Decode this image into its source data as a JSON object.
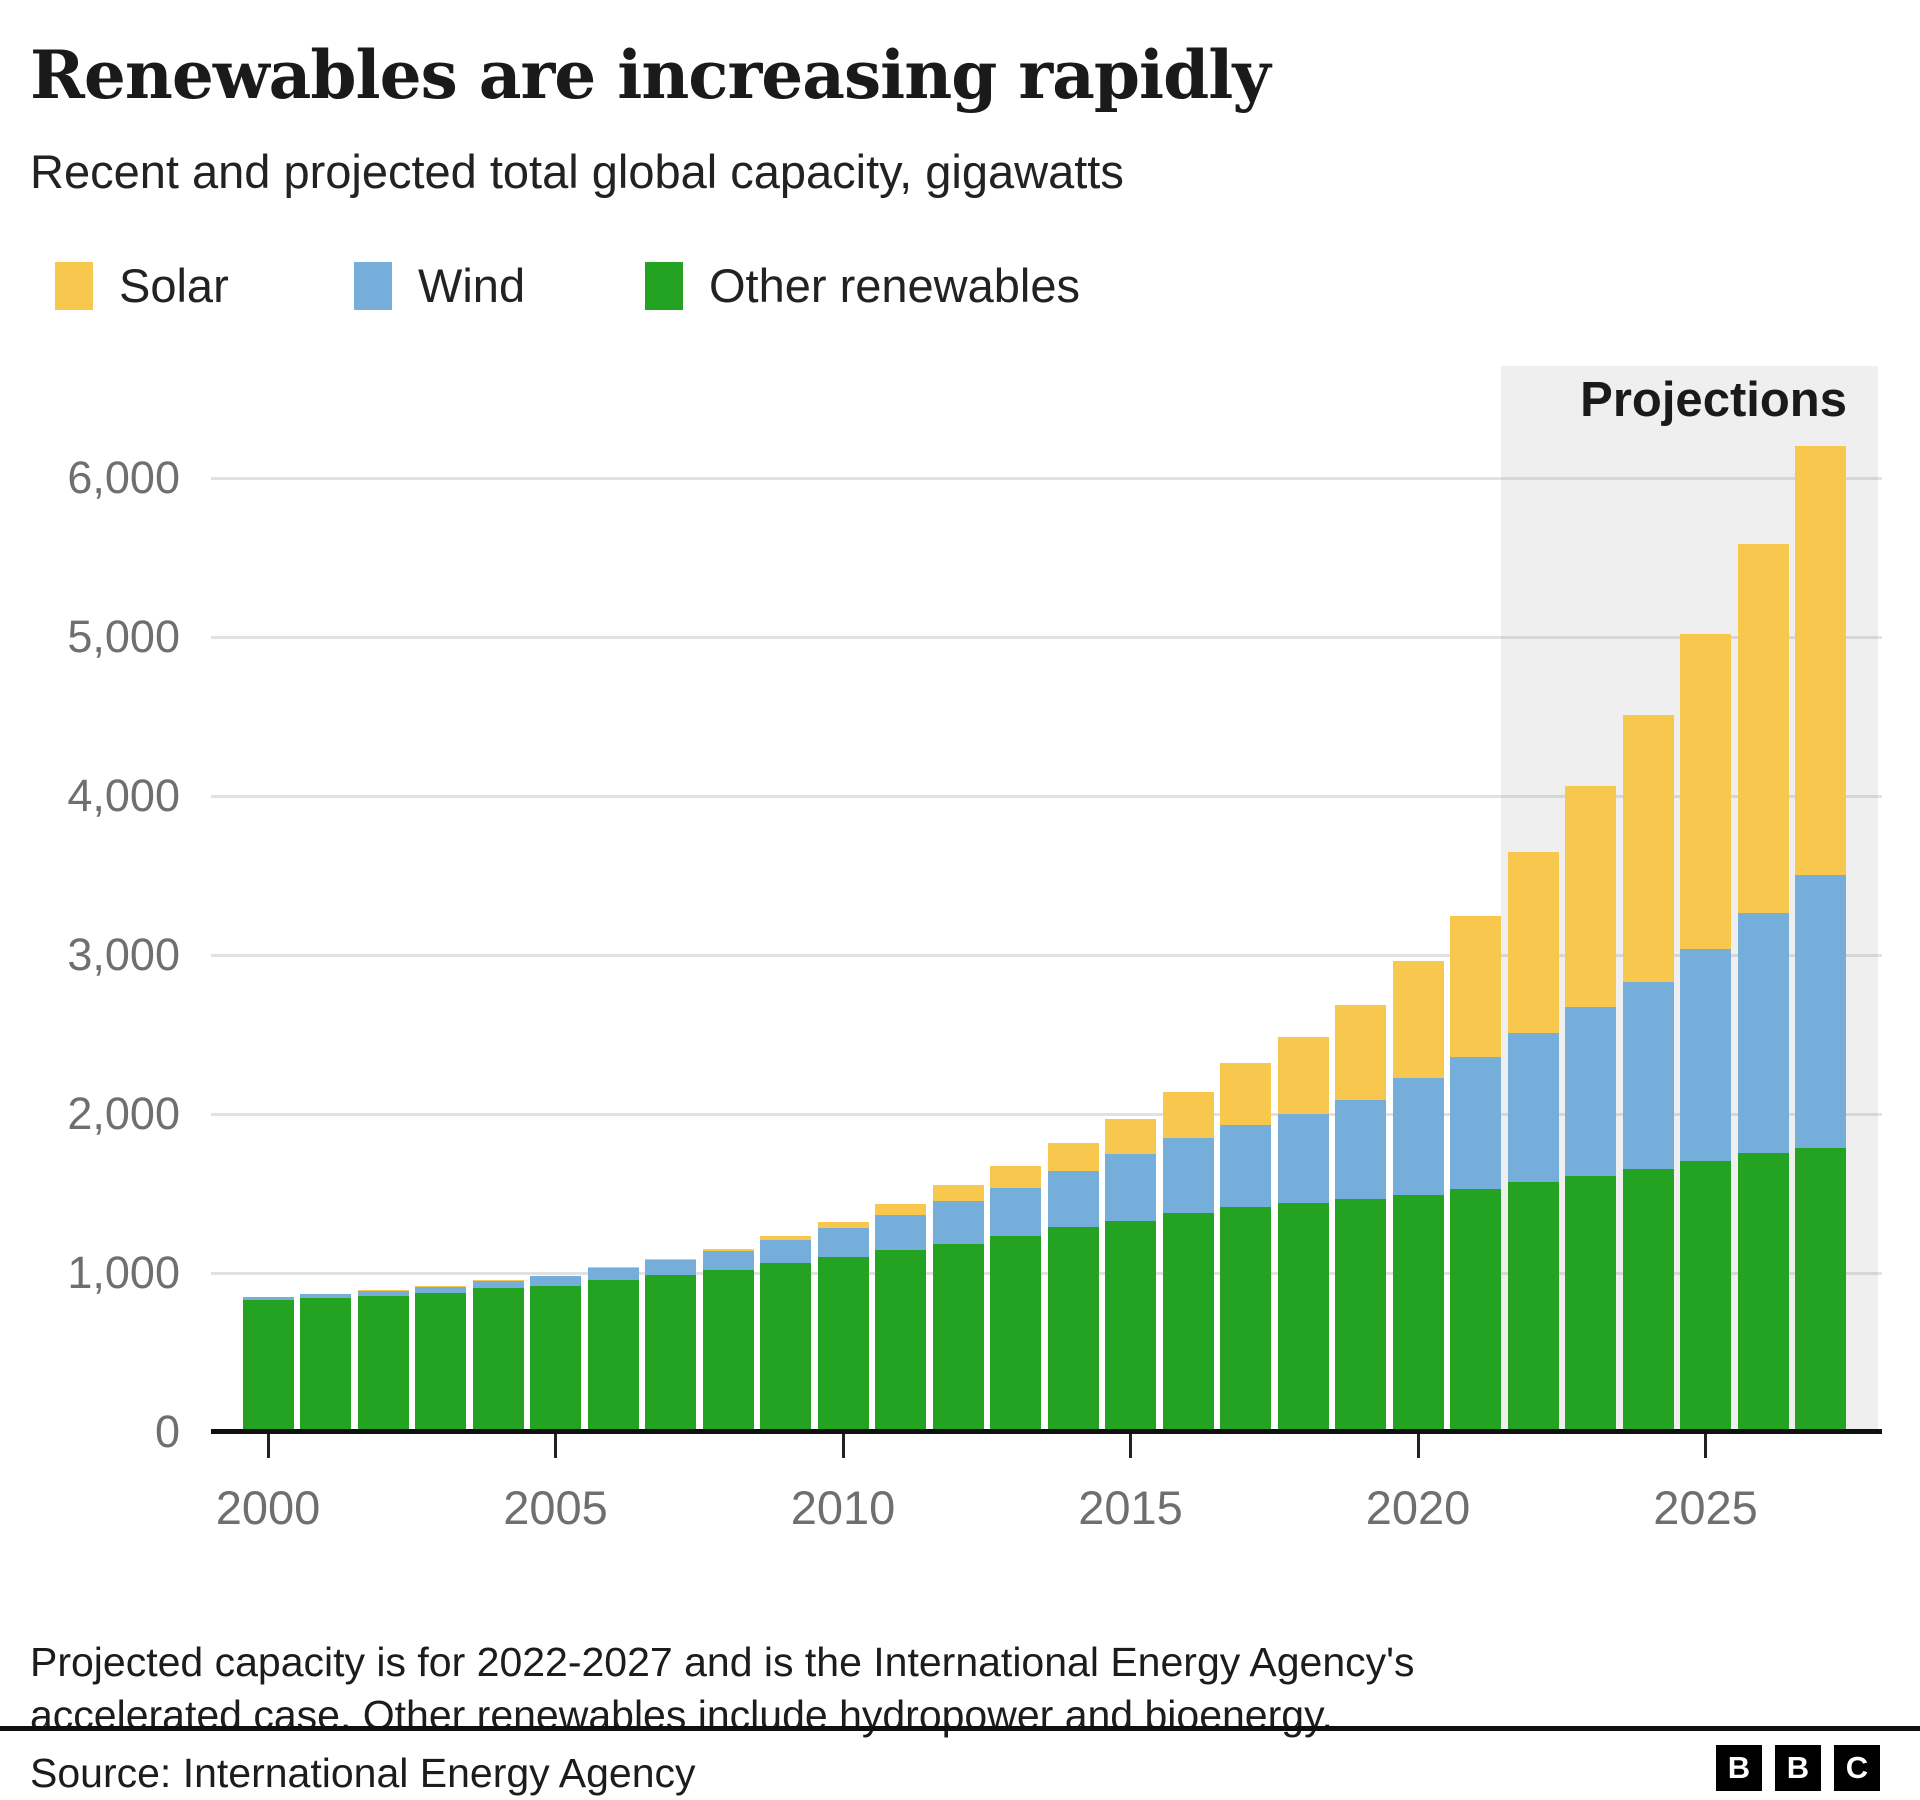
{
  "header": {
    "title": "Renewables are increasing rapidly",
    "subtitle": "Recent and projected total global capacity, gigawatts"
  },
  "legend": {
    "items": [
      {
        "label": "Solar",
        "color": "#F8C74D"
      },
      {
        "label": "Wind",
        "color": "#75ADDB"
      },
      {
        "label": "Other renewables",
        "color": "#24A222"
      }
    ]
  },
  "chart": {
    "projections_label": "Projections",
    "projections_years": [
      2022,
      2027
    ],
    "y_tick_values": [
      0,
      1000,
      2000,
      3000,
      4000,
      5000,
      6000
    ],
    "x_tick_years": [
      2000,
      2005,
      2010,
      2015,
      2020,
      2025
    ],
    "colors": {
      "solar": "#F8C74D",
      "wind": "#75ADDB",
      "other": "#24A222",
      "projection_band": "#efefef",
      "axis": "#101010",
      "axis_labels": "#6f6f6f"
    }
  },
  "chart_data": {
    "type": "bar",
    "stacked": true,
    "title": "Renewables are increasing rapidly",
    "subtitle": "Recent and projected total global capacity, gigawatts",
    "ylabel": "gigawatts",
    "ylim": [
      0,
      6000
    ],
    "grid": true,
    "legend_position": "top",
    "annotation": "Projections (2022-2027)",
    "categories": [
      2000,
      2001,
      2002,
      2003,
      2004,
      2005,
      2006,
      2007,
      2008,
      2009,
      2010,
      2011,
      2012,
      2013,
      2014,
      2015,
      2016,
      2017,
      2018,
      2019,
      2020,
      2021,
      2022,
      2023,
      2024,
      2025,
      2026,
      2027
    ],
    "series": [
      {
        "name": "Solar",
        "values": [
          1,
          2,
          2,
          3,
          4,
          5,
          7,
          9,
          15,
          23,
          40,
          70,
          100,
          137,
          177,
          222,
          291,
          389,
          480,
          600,
          740,
          885,
          1140,
          1390,
          1680,
          1980,
          2320,
          2700
        ]
      },
      {
        "name": "Wind",
        "values": [
          17,
          24,
          31,
          39,
          47,
          59,
          74,
          94,
          116,
          150,
          181,
          220,
          267,
          299,
          349,
          417,
          467,
          515,
          563,
          622,
          735,
          830,
          940,
          1060,
          1175,
          1335,
          1510,
          1715
        ]
      },
      {
        "name": "Other renewables",
        "values": [
          830,
          845,
          858,
          875,
          905,
          920,
          955,
          985,
          1020,
          1060,
          1100,
          1145,
          1185,
          1235,
          1290,
          1330,
          1380,
          1415,
          1440,
          1465,
          1490,
          1530,
          1570,
          1610,
          1655,
          1705,
          1755,
          1785
        ]
      }
    ]
  },
  "footer": {
    "note_line1": "Projected capacity is for 2022-2027 and is the International Energy Agency's",
    "note_line2": "accelerated case. Other renewables include hydropower and bioenergy.",
    "source": "Source: International Energy Agency",
    "logo_letters": [
      "B",
      "B",
      "C"
    ]
  }
}
